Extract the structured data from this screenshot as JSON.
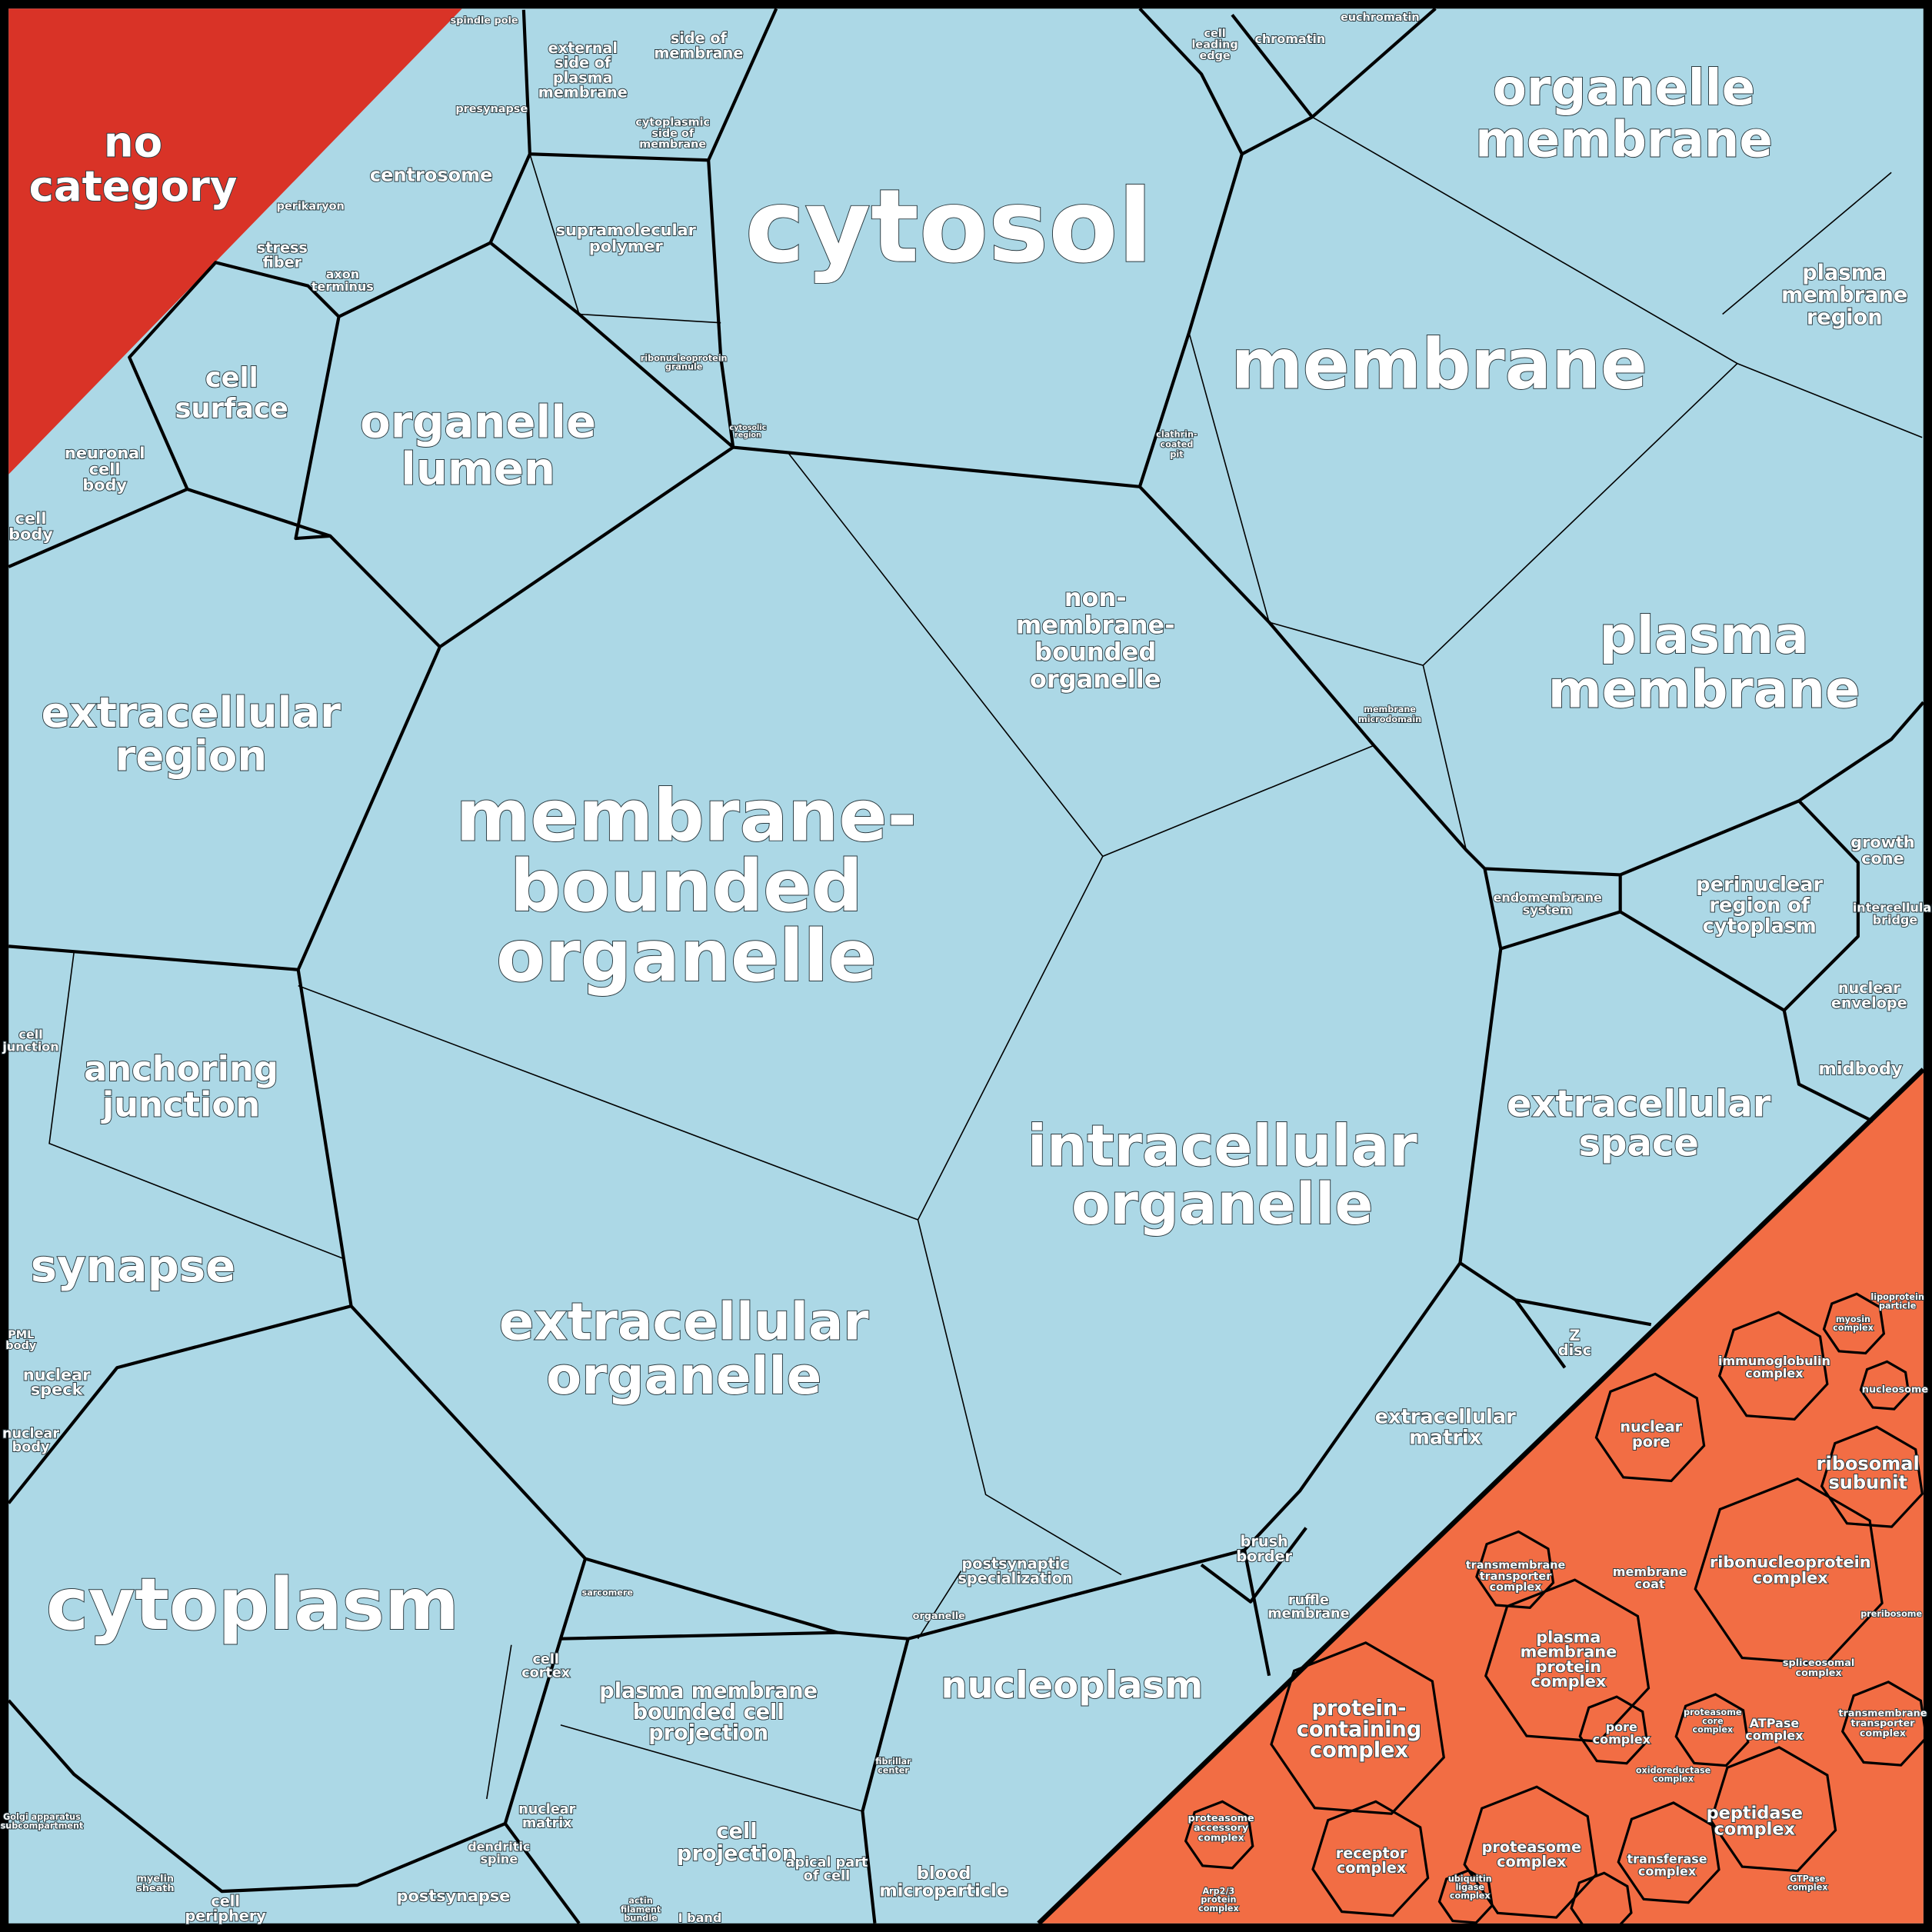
{
  "colors": {
    "cellular_component": "#acd8e6",
    "no_category": "#d93327",
    "protein_containing_complex": "#f26d44",
    "border": "#000000"
  },
  "labels": {
    "no_category": [
      "no",
      "category"
    ],
    "cytosol": [
      "cytosol"
    ],
    "membrane": [
      "membrane"
    ],
    "organelle_membrane": [
      "organelle",
      "membrane"
    ],
    "plasma_membrane": [
      "plasma",
      "membrane"
    ],
    "plasma_membrane_region": [
      "plasma",
      "membrane",
      "region"
    ],
    "membrane_bounded_organelle": [
      "membrane-",
      "bounded",
      "organelle"
    ],
    "non_membrane_bounded_organelle": [
      "non-",
      "membrane-",
      "bounded",
      "organelle"
    ],
    "intracellular_organelle": [
      "intracellular",
      "organelle"
    ],
    "extracellular_organelle": [
      "extracellular",
      "organelle"
    ],
    "cytoplasm": [
      "cytoplasm"
    ],
    "extracellular_region": [
      "extracellular",
      "region"
    ],
    "organelle_lumen": [
      "organelle",
      "lumen"
    ],
    "cell_surface": [
      "cell",
      "surface"
    ],
    "neuronal_cell_body": [
      "neuronal",
      "cell",
      "body"
    ],
    "cell_body": [
      "cell",
      "body"
    ],
    "anchoring_junction": [
      "anchoring",
      "junction"
    ],
    "cell_junction": [
      "cell",
      "junction"
    ],
    "synapse": [
      "synapse"
    ],
    "nuclear_speck": [
      "nuclear",
      "speck"
    ],
    "nuclear_body": [
      "nuclear",
      "body"
    ],
    "pml_body": [
      "PML",
      "body"
    ],
    "nucleoplasm": [
      "nucleoplasm"
    ],
    "extracellular_space": [
      "extracellular",
      "space"
    ],
    "extracellular_matrix": [
      "extracellular",
      "matrix"
    ],
    "perinuclear_region": [
      "perinuclear",
      "region of",
      "cytoplasm"
    ],
    "endomembrane_system": [
      "endomembrane",
      "system"
    ],
    "growth_cone": [
      "growth",
      "cone"
    ],
    "intercellular_bridge": [
      "intercellular",
      "bridge"
    ],
    "nuclear_envelope": [
      "nuclear",
      "envelope"
    ],
    "midbody": [
      "midbody"
    ],
    "z_disc": [
      "Z",
      "disc"
    ],
    "membrane_microdomain": [
      "membrane",
      "microdomain"
    ],
    "clathrin_coated_pit": [
      "clathrin-",
      "coated",
      "pit"
    ],
    "centrosome": [
      "centrosome"
    ],
    "supramolecular_polymer": [
      "supramolecular",
      "polymer"
    ],
    "external_side": [
      "external",
      "side of",
      "plasma",
      "membrane"
    ],
    "side_of_membrane": [
      "side of",
      "membrane"
    ],
    "cytoplasmic_side": [
      "cytoplasmic",
      "side of",
      "membrane"
    ],
    "stress_fiber": [
      "stress",
      "fiber"
    ],
    "axon_terminus": [
      "axon",
      "terminus"
    ],
    "presynapse": [
      "presynapse"
    ],
    "perikaryon": [
      "perikaryon"
    ],
    "cell_leading_edge": [
      "cell",
      "leading",
      "edge"
    ],
    "chromatin": [
      "chromatin"
    ],
    "euchromatin": [
      "euchromatin"
    ],
    "spindle_pole": [
      "spindle pole"
    ],
    "ribonucleoprotein_granule": [
      "ribonucleoprotein",
      "granule"
    ],
    "cytosolic_region": [
      "cytosolic",
      "region"
    ],
    "pm_bounded_cell_projection": [
      "plasma membrane",
      "bounded cell",
      "projection"
    ],
    "cell_projection": [
      "cell",
      "projection"
    ],
    "blood_microparticle": [
      "blood",
      "microparticle"
    ],
    "cell_cortex": [
      "cell",
      "cortex"
    ],
    "nuclear_matrix": [
      "nuclear",
      "matrix"
    ],
    "dendritic_spine": [
      "dendritic",
      "spine"
    ],
    "postsynapse": [
      "postsynapse"
    ],
    "cell_periphery": [
      "cell",
      "periphery"
    ],
    "apical_part": [
      "apical part",
      "of cell"
    ],
    "postsynaptic_specialization": [
      "postsynaptic",
      "specialization"
    ],
    "organelle": [
      "organelle"
    ],
    "brush_border": [
      "brush",
      "border"
    ],
    "ruffle_membrane": [
      "ruffle",
      "membrane"
    ],
    "sarcomere": [
      "sarcomere"
    ],
    "fibrillar_center": [
      "fibrillar",
      "center"
    ],
    "i_band": [
      "I band"
    ],
    "actin_filament_bundle": [
      "actin",
      "filament",
      "bundle"
    ],
    "golgi_subcompartment": [
      "Golgi apparatus",
      "subcompartment"
    ],
    "myelin_sheath": [
      "myelin",
      "sheath"
    ],
    "protein_containing_complex": [
      "protein-",
      "containing",
      "complex"
    ],
    "plasma_membrane_protein_complex": [
      "plasma",
      "membrane",
      "protein",
      "complex"
    ],
    "transmembrane_transporter_complex": [
      "transmembrane",
      "transporter",
      "complex"
    ],
    "ribonucleoprotein_complex": [
      "ribonucleoprotein",
      "complex"
    ],
    "ribosomal_subunit": [
      "ribosomal",
      "subunit"
    ],
    "immunoglobulin_complex": [
      "immunoglobulin",
      "complex"
    ],
    "nuclear_pore": [
      "nuclear",
      "pore"
    ],
    "membrane_coat": [
      "membrane",
      "coat"
    ],
    "pore_complex": [
      "pore",
      "complex"
    ],
    "proteasome_complex": [
      "proteasome",
      "complex"
    ],
    "peptidase_complex": [
      "peptidase",
      "complex"
    ],
    "receptor_complex": [
      "receptor",
      "complex"
    ],
    "transferase_complex": [
      "transferase",
      "complex"
    ],
    "atpase_complex": [
      "ATPase",
      "complex"
    ],
    "spliceosomal_complex": [
      "spliceosomal",
      "complex"
    ],
    "oxidoreductase_complex": [
      "oxidoreductase",
      "complex"
    ],
    "proteasome_core_complex": [
      "proteasome",
      "core",
      "complex"
    ],
    "transmembrane_transporter_complex_2": [
      "transmembrane",
      "transporter",
      "complex"
    ],
    "nucleosome": [
      "nucleosome"
    ],
    "myosin_complex": [
      "myosin",
      "complex"
    ],
    "lipoprotein_particle": [
      "lipoprotein",
      "particle"
    ],
    "gtpase_complex": [
      "GTPase",
      "complex"
    ],
    "preribosome": [
      "preribosome"
    ],
    "proteasome_accessory_complex": [
      "proteasome",
      "accessory",
      "complex"
    ],
    "ubiquitin_ligase_complex": [
      "ubiquitin",
      "ligase",
      "complex"
    ],
    "arp23_complex": [
      "Arp2/3",
      "protein",
      "complex"
    ]
  }
}
